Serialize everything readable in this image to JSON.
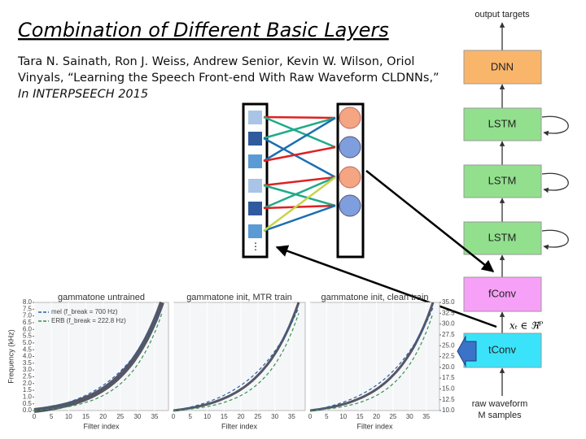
{
  "title": "Combination of Different Basic Layers",
  "citation": [
    "Tara N. Sainath, Ron J. Weiss, Andrew Senior, Kevin W. Wilson, Oriol",
    "Vinyals, “Learning the Speech Front-end With Raw Waveform CLDNNs,”",
    "In INTERPSEECH 2015"
  ],
  "architecture": {
    "top_label": "output targets",
    "blocks": [
      "DNN",
      "LSTM",
      "LSTM",
      "LSTM",
      "fConv",
      "tConv"
    ],
    "math": "xₜ ∈ ℜᴾ",
    "bottom_label": [
      "raw waveform",
      "M samples"
    ]
  },
  "plots": [
    {
      "title": "gammatone untrained",
      "xlabel": "Filter index",
      "ylabel": "Frequency (kHz)",
      "legend": [
        "mel (f_break = 700 Hz)",
        "ERB (f_break = 222.8 Hz)"
      ]
    },
    {
      "title": "gammatone init, MTR train",
      "xlabel": "Filter index"
    },
    {
      "title": "gammatone init, clean train",
      "xlabel": "Filter index"
    }
  ],
  "xticks": [
    0,
    5,
    10,
    15,
    20,
    25,
    30,
    35
  ],
  "yticks": [
    {
      "value": 0,
      "label": "0.0"
    },
    {
      "value": 0.5,
      "label": "0.5"
    },
    {
      "value": 1,
      "label": "1.0"
    },
    {
      "value": 1.5,
      "label": "1.5"
    },
    {
      "value": 2,
      "label": "2.0"
    },
    {
      "value": 2.5,
      "label": "2.5"
    },
    {
      "value": 3,
      "label": "3.0"
    },
    {
      "value": 3.5,
      "label": "3.5"
    },
    {
      "value": 4,
      "label": "4.0"
    },
    {
      "value": 4.5,
      "label": "4.5"
    },
    {
      "value": 5,
      "label": "5.0"
    },
    {
      "value": 5.5,
      "label": "5.5"
    },
    {
      "value": 6,
      "label": "6.0"
    },
    {
      "value": 6.5,
      "label": "6.5"
    },
    {
      "value": 7,
      "label": "7.0"
    },
    {
      "value": 7.5,
      "label": "7.5"
    },
    {
      "value": 8,
      "label": "8.0"
    }
  ],
  "y2ticks": [
    {
      "value": 10,
      "label": "10.0"
    },
    {
      "value": 12.5,
      "label": "12.5"
    },
    {
      "value": 15,
      "label": "15.0"
    },
    {
      "value": 17.5,
      "label": "17.5"
    },
    {
      "value": 20,
      "label": "20.0"
    },
    {
      "value": 22.5,
      "label": "22.5"
    },
    {
      "value": 25,
      "label": "25.0"
    },
    {
      "value": 27.5,
      "label": "27.5"
    },
    {
      "value": 30,
      "label": "30.0"
    },
    {
      "value": 32.5,
      "label": "32.5"
    },
    {
      "value": 35,
      "label": "35.0"
    }
  ]
}
